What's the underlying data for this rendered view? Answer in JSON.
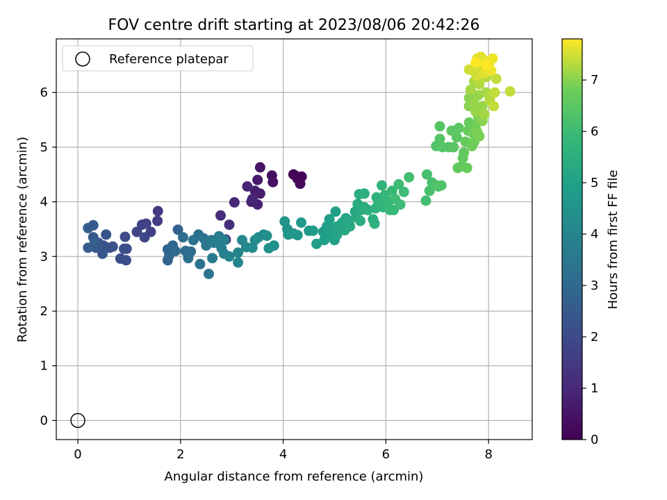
{
  "chart_data": {
    "type": "scatter",
    "title": "FOV centre drift starting at 2023/08/06 20:42:26",
    "xlabel": "Angular distance from reference (arcmin)",
    "ylabel": "Rotation from reference (arcmin)",
    "xlim": [
      -0.42,
      8.85
    ],
    "ylim": [
      -0.35,
      6.98
    ],
    "xticks": [
      "0",
      "2",
      "4",
      "6",
      "8"
    ],
    "yticks": [
      "0",
      "1",
      "2",
      "3",
      "4",
      "5",
      "6"
    ],
    "grid": true,
    "legend_position": "top-left",
    "legend": [
      "Reference platepar"
    ],
    "reference_point": {
      "x": 0,
      "y": 0
    },
    "colorbar": {
      "label": "Hours from first FF file",
      "range": [
        0,
        7.8
      ],
      "ticks": [
        "0",
        "1",
        "2",
        "3",
        "4",
        "5",
        "6",
        "7"
      ],
      "colormap": "viridis"
    },
    "points": [
      [
        4.2,
        4.5,
        0.0
      ],
      [
        4.28,
        4.42,
        0.1
      ],
      [
        4.33,
        4.33,
        0.2
      ],
      [
        4.36,
        4.46,
        0.1
      ],
      [
        4.25,
        4.47,
        0.0
      ],
      [
        3.78,
        4.48,
        0.3
      ],
      [
        3.8,
        4.36,
        0.4
      ],
      [
        3.55,
        4.63,
        0.5
      ],
      [
        3.5,
        4.4,
        0.6
      ],
      [
        3.55,
        4.15,
        0.7
      ],
      [
        3.45,
        4.2,
        0.7
      ],
      [
        3.38,
        4.0,
        0.8
      ],
      [
        3.5,
        3.95,
        0.8
      ],
      [
        3.3,
        4.28,
        0.9
      ],
      [
        3.4,
        4.05,
        0.9
      ],
      [
        3.05,
        3.99,
        1.0
      ],
      [
        2.78,
        3.75,
        1.1
      ],
      [
        2.95,
        3.58,
        1.2
      ],
      [
        2.88,
        3.31,
        1.3
      ],
      [
        1.56,
        3.83,
        1.5
      ],
      [
        1.55,
        3.65,
        1.6
      ],
      [
        1.33,
        3.6,
        1.7
      ],
      [
        1.42,
        3.45,
        1.7
      ],
      [
        1.25,
        3.58,
        1.8
      ],
      [
        1.15,
        3.45,
        1.8
      ],
      [
        1.3,
        3.35,
        1.9
      ],
      [
        0.92,
        3.36,
        2.0
      ],
      [
        0.95,
        3.14,
        2.0
      ],
      [
        0.9,
        3.14,
        2.1
      ],
      [
        0.83,
        2.96,
        2.1
      ],
      [
        0.94,
        2.93,
        2.1
      ],
      [
        0.62,
        3.16,
        2.2
      ],
      [
        0.68,
        3.18,
        2.2
      ],
      [
        0.55,
        3.4,
        2.3
      ],
      [
        0.5,
        3.2,
        2.3
      ],
      [
        0.48,
        3.05,
        2.4
      ],
      [
        0.4,
        3.25,
        2.4
      ],
      [
        0.35,
        3.16,
        2.4
      ],
      [
        0.3,
        3.35,
        2.5
      ],
      [
        0.3,
        3.57,
        2.5
      ],
      [
        0.2,
        3.52,
        2.6
      ],
      [
        0.2,
        3.16,
        2.6
      ],
      [
        0.33,
        3.28,
        2.6
      ],
      [
        1.95,
        3.49,
        2.7
      ],
      [
        1.75,
        3.13,
        2.8
      ],
      [
        1.75,
        2.93,
        2.8
      ],
      [
        1.78,
        3.02,
        2.9
      ],
      [
        1.85,
        3.2,
        2.9
      ],
      [
        1.9,
        3.1,
        3.0
      ],
      [
        2.1,
        3.1,
        3.0
      ],
      [
        2.2,
        3.09,
        3.1
      ],
      [
        2.05,
        3.35,
        3.1
      ],
      [
        2.15,
        2.97,
        3.2
      ],
      [
        2.35,
        3.4,
        3.2
      ],
      [
        2.38,
        2.86,
        3.3
      ],
      [
        2.25,
        3.3,
        3.3
      ],
      [
        2.45,
        3.33,
        3.4
      ],
      [
        2.55,
        2.68,
        3.4
      ],
      [
        2.5,
        3.2,
        3.5
      ],
      [
        2.6,
        3.3,
        3.5
      ],
      [
        2.65,
        3.25,
        3.6
      ],
      [
        2.62,
        2.97,
        3.6
      ],
      [
        2.75,
        3.37,
        3.7
      ],
      [
        2.8,
        3.15,
        3.7
      ],
      [
        2.73,
        3.25,
        3.8
      ],
      [
        2.85,
        3.3,
        3.8
      ],
      [
        2.85,
        3.05,
        3.9
      ],
      [
        2.95,
        3.0,
        3.9
      ],
      [
        3.12,
        3.07,
        4.0
      ],
      [
        3.12,
        2.89,
        4.0
      ],
      [
        3.2,
        3.3,
        4.1
      ],
      [
        3.28,
        3.17,
        4.1
      ],
      [
        3.4,
        3.16,
        4.2
      ],
      [
        3.45,
        3.3,
        4.2
      ],
      [
        3.52,
        3.35,
        4.3
      ],
      [
        3.62,
        3.4,
        4.3
      ],
      [
        3.68,
        3.38,
        4.4
      ],
      [
        3.72,
        3.15,
        4.4
      ],
      [
        3.82,
        3.2,
        4.4
      ],
      [
        4.03,
        3.64,
        4.5
      ],
      [
        4.08,
        3.5,
        4.5
      ],
      [
        4.1,
        3.4,
        4.6
      ],
      [
        4.2,
        3.42,
        4.6
      ],
      [
        4.28,
        3.39,
        4.6
      ],
      [
        4.35,
        3.62,
        4.7
      ],
      [
        4.5,
        3.47,
        4.7
      ],
      [
        4.58,
        3.47,
        4.8
      ],
      [
        4.65,
        3.23,
        4.8
      ],
      [
        4.78,
        3.45,
        4.8
      ],
      [
        4.8,
        3.3,
        4.9
      ],
      [
        4.85,
        3.55,
        4.9
      ],
      [
        4.88,
        3.4,
        4.9
      ],
      [
        4.9,
        3.68,
        4.9
      ],
      [
        4.95,
        3.45,
        5.0
      ],
      [
        4.98,
        3.52,
        5.0
      ],
      [
        5.0,
        3.3,
        5.0
      ],
      [
        5.02,
        3.82,
        5.0
      ],
      [
        5.05,
        3.55,
        5.1
      ],
      [
        5.05,
        3.4,
        5.1
      ],
      [
        5.1,
        3.5,
        5.1
      ],
      [
        5.15,
        3.62,
        5.1
      ],
      [
        5.2,
        3.48,
        5.2
      ],
      [
        5.22,
        3.7,
        5.2
      ],
      [
        5.28,
        3.62,
        5.2
      ],
      [
        5.3,
        3.55,
        5.3
      ],
      [
        5.4,
        3.82,
        5.3
      ],
      [
        5.42,
        3.72,
        5.3
      ],
      [
        5.45,
        3.96,
        5.4
      ],
      [
        5.48,
        4.14,
        5.4
      ],
      [
        5.5,
        3.65,
        5.4
      ],
      [
        5.52,
        3.85,
        5.4
      ],
      [
        5.58,
        3.9,
        5.5
      ],
      [
        5.58,
        4.15,
        5.5
      ],
      [
        5.65,
        3.85,
        5.5
      ],
      [
        5.75,
        3.68,
        5.5
      ],
      [
        5.78,
        3.6,
        5.6
      ],
      [
        5.8,
        3.88,
        5.6
      ],
      [
        5.82,
        4.08,
        5.6
      ],
      [
        5.85,
        3.95,
        5.6
      ],
      [
        5.88,
        3.98,
        5.7
      ],
      [
        5.92,
        4.3,
        5.7
      ],
      [
        5.95,
        3.9,
        5.7
      ],
      [
        5.98,
        4.12,
        5.8
      ],
      [
        6.02,
        3.95,
        5.8
      ],
      [
        6.05,
        4.0,
        5.8
      ],
      [
        6.08,
        3.85,
        5.9
      ],
      [
        6.12,
        4.2,
        5.9
      ],
      [
        6.15,
        3.85,
        5.9
      ],
      [
        6.18,
        4.05,
        6.0
      ],
      [
        6.25,
        4.32,
        6.0
      ],
      [
        6.28,
        3.95,
        6.0
      ],
      [
        6.35,
        4.18,
        6.0
      ],
      [
        6.45,
        4.45,
        6.1
      ],
      [
        6.78,
        4.02,
        6.1
      ],
      [
        6.8,
        4.5,
        6.2
      ],
      [
        6.85,
        4.2,
        6.2
      ],
      [
        6.9,
        4.35,
        6.2
      ],
      [
        6.98,
        4.3,
        6.3
      ],
      [
        7.02,
        4.28,
        6.3
      ],
      [
        7.08,
        4.3,
        6.3
      ],
      [
        6.98,
        5.02,
        6.3
      ],
      [
        7.05,
        5.15,
        6.4
      ],
      [
        7.05,
        5.38,
        6.4
      ],
      [
        7.1,
        5.0,
        6.4
      ],
      [
        7.22,
        5.0,
        6.4
      ],
      [
        7.28,
        5.3,
        6.5
      ],
      [
        7.32,
        5.0,
        6.5
      ],
      [
        7.38,
        5.18,
        6.5
      ],
      [
        7.42,
        5.35,
        6.5
      ],
      [
        7.4,
        4.62,
        6.6
      ],
      [
        7.48,
        4.65,
        6.6
      ],
      [
        7.5,
        4.8,
        6.6
      ],
      [
        7.52,
        4.9,
        6.6
      ],
      [
        7.55,
        5.1,
        6.7
      ],
      [
        7.58,
        4.62,
        6.7
      ],
      [
        7.6,
        5.3,
        6.7
      ],
      [
        7.62,
        5.45,
        6.7
      ],
      [
        7.68,
        5.02,
        6.8
      ],
      [
        7.7,
        5.25,
        6.8
      ],
      [
        7.72,
        5.1,
        6.8
      ],
      [
        7.75,
        5.4,
        6.8
      ],
      [
        7.78,
        5.28,
        6.9
      ],
      [
        7.8,
        5.55,
        6.9
      ],
      [
        7.82,
        5.2,
        6.9
      ],
      [
        7.85,
        5.7,
        6.9
      ],
      [
        7.88,
        5.48,
        7.0
      ],
      [
        7.62,
        5.75,
        7.0
      ],
      [
        7.62,
        5.9,
        7.0
      ],
      [
        7.72,
        5.8,
        7.1
      ],
      [
        7.75,
        5.65,
        7.1
      ],
      [
        7.8,
        5.95,
        7.1
      ],
      [
        7.88,
        5.75,
        7.1
      ],
      [
        7.92,
        5.6,
        7.2
      ],
      [
        7.95,
        6.0,
        7.2
      ],
      [
        7.65,
        6.05,
        7.2
      ],
      [
        7.72,
        6.2,
        7.2
      ],
      [
        7.82,
        6.15,
        7.3
      ],
      [
        7.95,
        6.28,
        7.3
      ],
      [
        8.02,
        5.85,
        7.3
      ],
      [
        8.05,
        5.95,
        7.3
      ],
      [
        8.1,
        5.75,
        7.4
      ],
      [
        8.12,
        6.0,
        7.4
      ],
      [
        8.15,
        6.25,
        7.4
      ],
      [
        8.42,
        6.02,
        7.4
      ],
      [
        7.62,
        6.42,
        7.5
      ],
      [
        7.72,
        6.38,
        7.5
      ],
      [
        7.78,
        6.3,
        7.5
      ],
      [
        7.85,
        6.45,
        7.5
      ],
      [
        7.9,
        6.6,
        7.6
      ],
      [
        7.92,
        6.35,
        7.6
      ],
      [
        7.78,
        6.62,
        7.6
      ],
      [
        7.85,
        6.65,
        7.6
      ],
      [
        8.02,
        6.55,
        7.7
      ],
      [
        8.05,
        6.4,
        7.7
      ],
      [
        8.08,
        6.62,
        7.7
      ],
      [
        7.75,
        6.55,
        7.8
      ],
      [
        7.95,
        6.5,
        7.8
      ]
    ]
  }
}
